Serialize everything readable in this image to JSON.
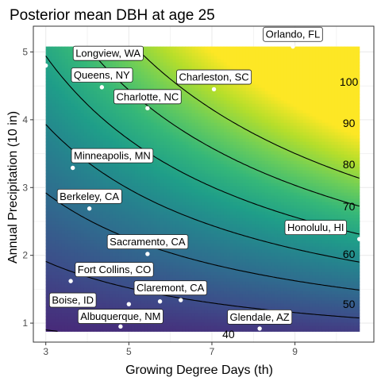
{
  "chart_data": {
    "type": "heatmap",
    "title": "Posterior mean DBH at age 25",
    "xlabel": "Growing Degree Days (th)",
    "ylabel": "Annual Precipitation (10 in)",
    "xlim": [
      2.7,
      10.9
    ],
    "ylim": [
      0.72,
      5.38
    ],
    "fill_range": {
      "x": [
        3.0,
        10.55
      ],
      "y": [
        0.88,
        5.08
      ]
    },
    "x_ticks": [
      3,
      5,
      7,
      9
    ],
    "y_ticks": [
      1,
      2,
      3,
      4,
      5
    ],
    "grid": true,
    "legend": "none",
    "colormap": "viridis",
    "colors": {
      "low": "#440154",
      "mid": "#21908c",
      "high": "#fde725",
      "panel_border": "#333333",
      "grid": "#ebebeb"
    },
    "contour_levels": [
      40,
      50,
      60,
      70,
      80,
      90,
      100
    ],
    "contour_labels": [
      {
        "text": "40",
        "x": 7.4,
        "y": 0.84
      },
      {
        "text": "50",
        "x": 10.3,
        "y": 1.28
      },
      {
        "text": "60",
        "x": 10.3,
        "y": 2.02
      },
      {
        "text": "70",
        "x": 10.3,
        "y": 2.72
      },
      {
        "text": "80",
        "x": 10.3,
        "y": 3.34
      },
      {
        "text": "90",
        "x": 10.3,
        "y": 3.95
      },
      {
        "text": "100",
        "x": 10.3,
        "y": 4.56
      }
    ],
    "cities": [
      {
        "name": "Orlando, FL",
        "x": 8.95,
        "y": 5.08,
        "lx": 8.95,
        "ly": 5.26
      },
      {
        "name": "Longview, WA",
        "x": 3.0,
        "y": 4.8,
        "lx": 4.5,
        "ly": 4.98
      },
      {
        "name": "Queens, NY",
        "x": 4.35,
        "y": 4.48,
        "lx": 4.35,
        "ly": 4.66
      },
      {
        "name": "Charleston, SC",
        "x": 7.05,
        "y": 4.45,
        "lx": 7.05,
        "ly": 4.63
      },
      {
        "name": "Charlotte, NC",
        "x": 5.45,
        "y": 4.17,
        "lx": 5.45,
        "ly": 4.34
      },
      {
        "name": "Minneapolis, MN",
        "x": 3.65,
        "y": 3.29,
        "lx": 4.6,
        "ly": 3.47
      },
      {
        "name": "Berkeley, CA",
        "x": 4.05,
        "y": 2.69,
        "lx": 4.05,
        "ly": 2.87
      },
      {
        "name": "Honolulu, HI",
        "x": 10.55,
        "y": 2.24,
        "lx": 9.5,
        "ly": 2.41
      },
      {
        "name": "Sacramento, CA",
        "x": 5.45,
        "y": 2.02,
        "lx": 5.45,
        "ly": 2.2
      },
      {
        "name": "Fort Collins, CO",
        "x": 3.6,
        "y": 1.62,
        "lx": 4.65,
        "ly": 1.79
      },
      {
        "name": "Claremont, CA",
        "x": 6.25,
        "y": 1.34,
        "lx": 6.0,
        "ly": 1.52
      },
      {
        "name": "Boise, ID",
        "x": 5.0,
        "y": 1.28,
        "lx": 3.65,
        "ly": 1.34
      },
      {
        "name": "Albuquerque, NM",
        "x": 4.8,
        "y": 0.95,
        "lx": 4.8,
        "ly": 1.1
      },
      {
        "name": "Glendale, AZ",
        "x": 8.15,
        "y": 0.92,
        "lx": 8.15,
        "ly": 1.09
      },
      {
        "name": "",
        "x": 5.75,
        "y": 1.32
      }
    ]
  }
}
